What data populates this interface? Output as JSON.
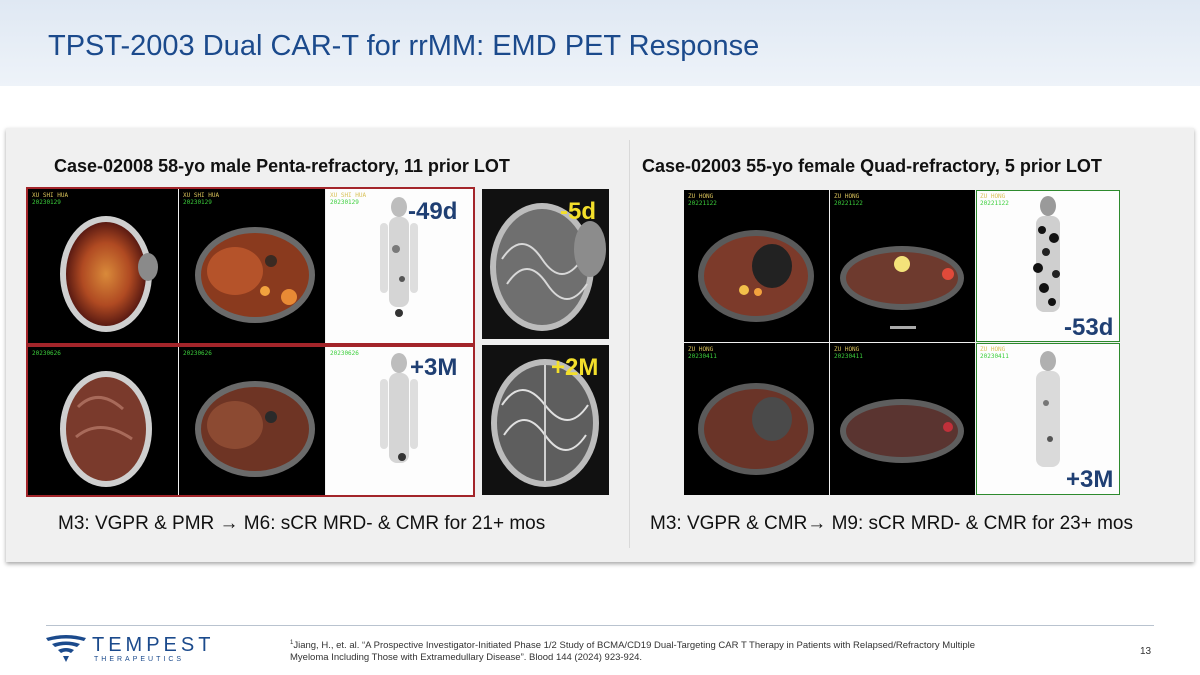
{
  "slide": {
    "title": "TPST-2003 Dual CAR-T for rrMM: EMD PET Response",
    "page_number": "13"
  },
  "case_left": {
    "heading": "Case-02008 58-yo male  Penta-refractory, 11 prior LOT",
    "summary": "M3: VGPR & PMR → M6: sCR MRD- & CMR for 21+ mos",
    "timepoints": {
      "baseline_pet": "-49d",
      "baseline_mri": "-5d",
      "followup_pet": "+3M",
      "followup_mri": "+2M"
    },
    "scan_labels": {
      "top_name": "XU SHI HUA",
      "top_date": "20230129",
      "bottom_date": "20230626"
    }
  },
  "case_right": {
    "heading": "Case-02003 55-yo female  Quad-refractory, 5 prior LOT",
    "summary": "M3: VGPR & CMR→ M9: sCR MRD- & CMR for 23+ mos",
    "timepoints": {
      "baseline_pet": "-53d",
      "followup_pet": "+3M"
    },
    "scan_labels": {
      "top_name": "ZU HONG",
      "top_date": "20221122",
      "bottom_date": "20230411"
    }
  },
  "footer": {
    "logo_name": "TEMPEST",
    "logo_sub": "THERAPEUTICS",
    "citation_marker": "1",
    "citation": "Jiang, H., et. al. “A Prospective Investigator-Initiated Phase 1/2 Study of BCMA/CD19 Dual-Targeting CAR T Therapy in Patients with Relapsed/Refractory Multiple Myeloma Including Those with Extramedullary Disease”. Blood 144 (2024) 923-924."
  },
  "colors": {
    "title_blue": "#1b4a8c",
    "frame_red": "#a3252a",
    "frame_green": "#2d8a2d",
    "timepoint_navy": "#1f3f73"
  }
}
